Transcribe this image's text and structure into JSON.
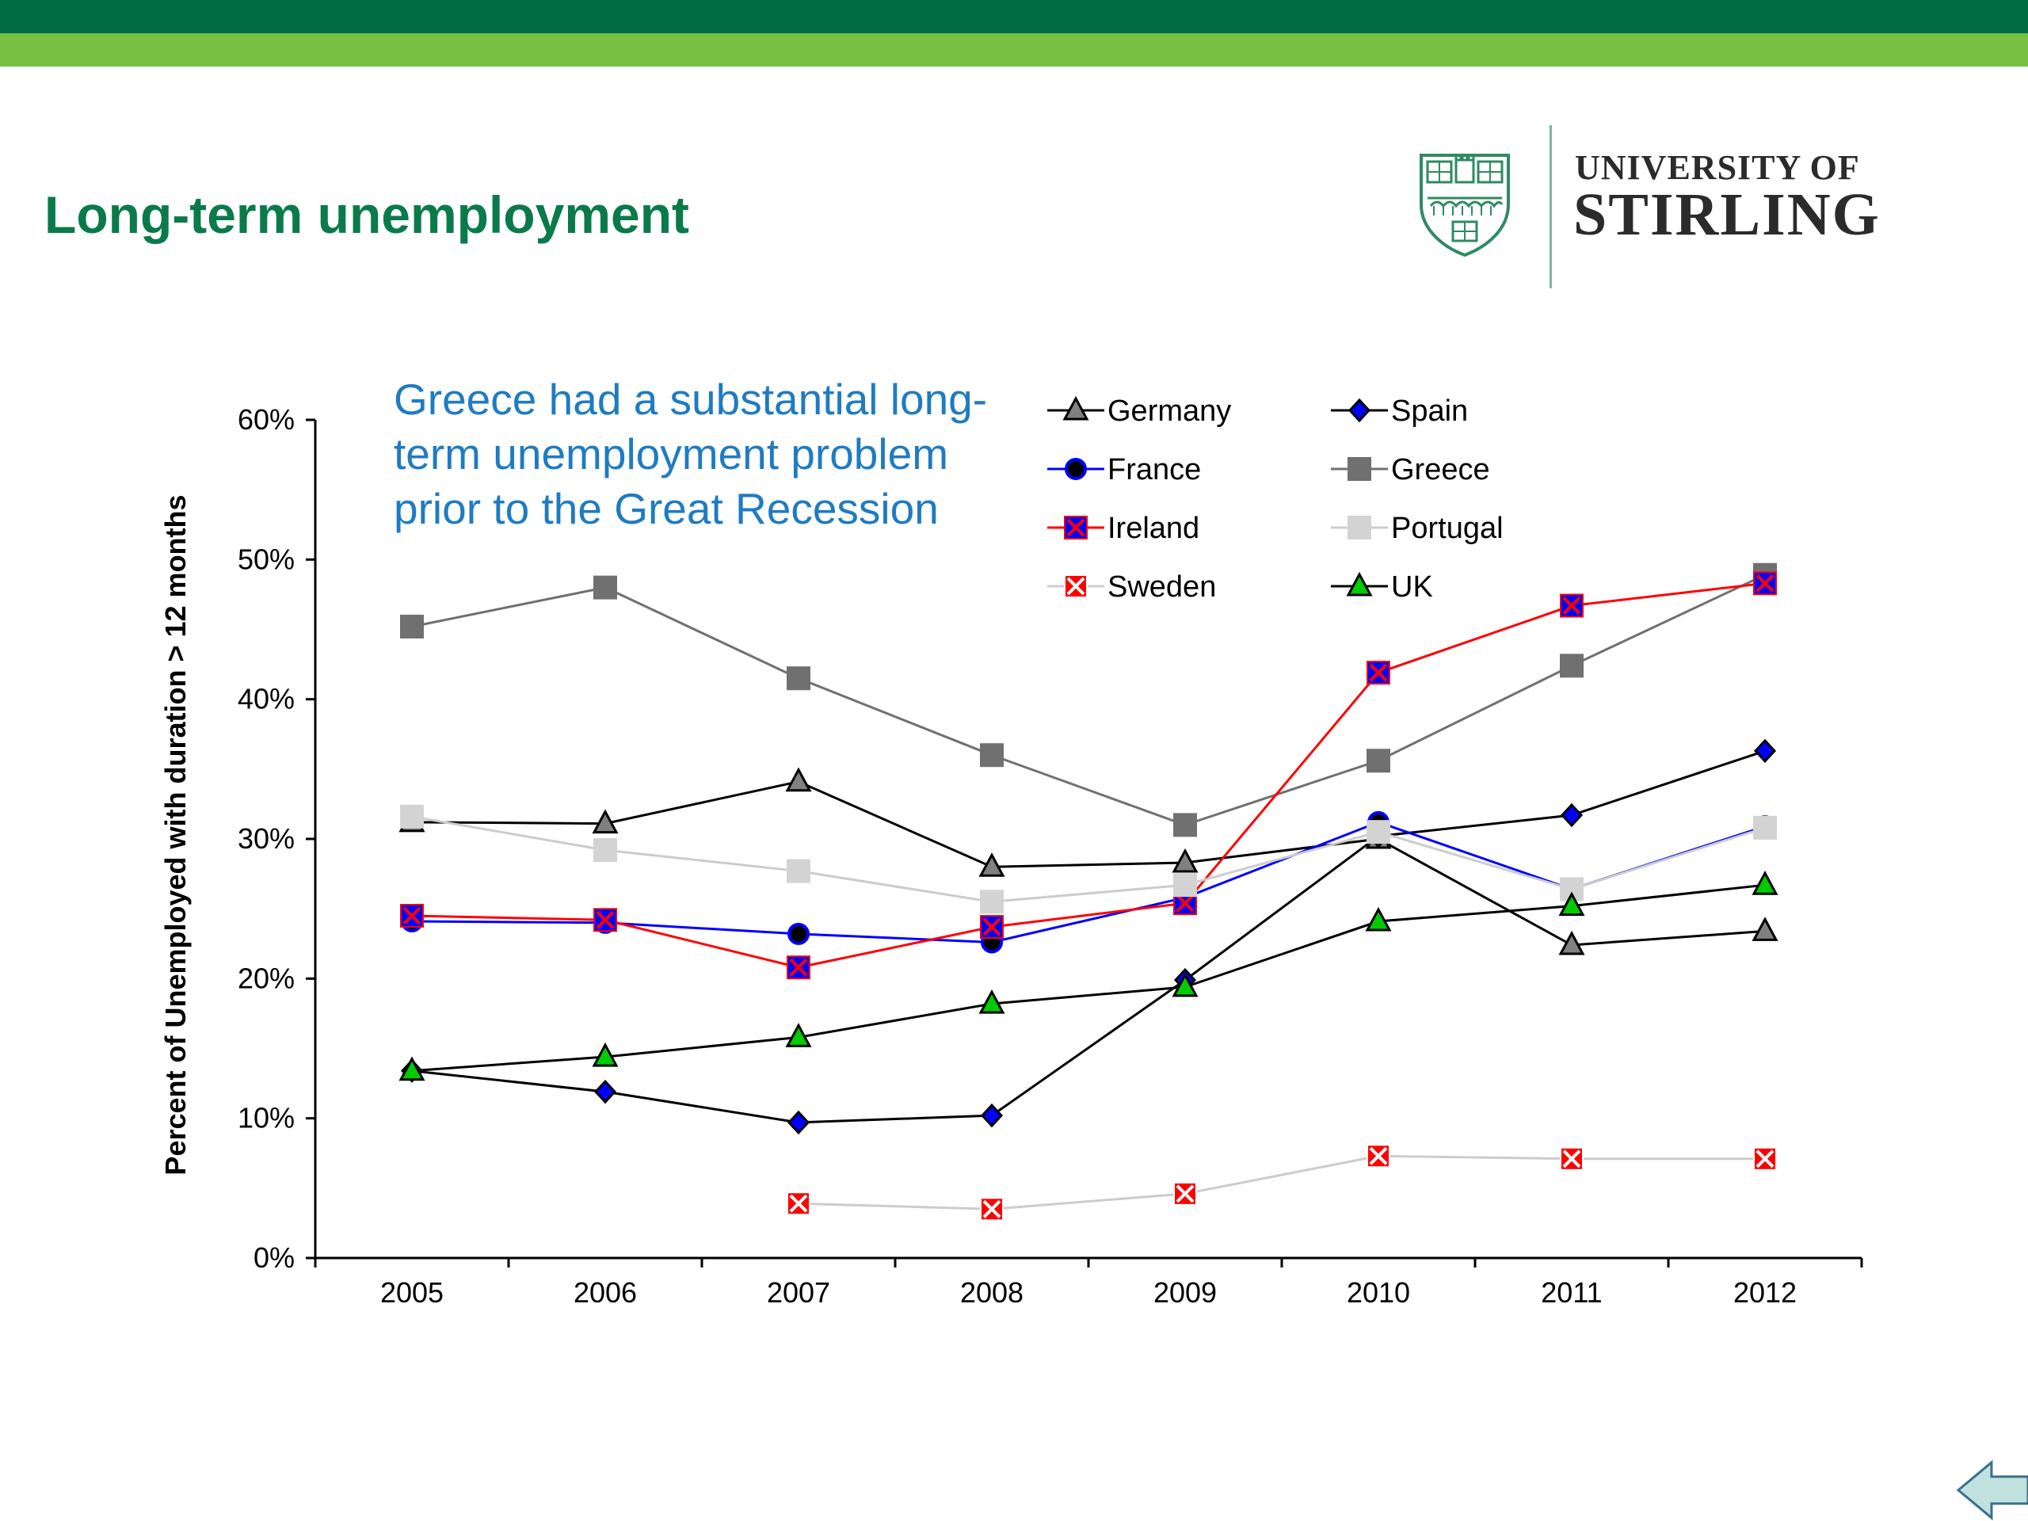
{
  "slide": {
    "title": "Long-term unemployment",
    "colors": {
      "band_dark": "#006b44",
      "band_light": "#77c044",
      "title": "#0a7a4a",
      "annotation": "#1f7bc2"
    }
  },
  "logo": {
    "line1": "UNIVERSITY OF",
    "line2": "STIRLING",
    "crest_icon": "stirling-crest-icon"
  },
  "annotation": "Greece had a substantial long-term unemployment problem prior to the Great Recession",
  "nav": {
    "back_icon": "back-arrow-icon"
  },
  "chart_data": {
    "type": "line",
    "title": "",
    "xlabel": "",
    "ylabel": "Percent of Unemployed with duration > 12 months",
    "x": [
      "2005",
      "2006",
      "2007",
      "2008",
      "2009",
      "2010",
      "2011",
      "2012"
    ],
    "ylim": [
      0,
      60
    ],
    "yticks": [
      0,
      10,
      20,
      30,
      40,
      50,
      60
    ],
    "ytick_labels": [
      "0%",
      "10%",
      "20%",
      "30%",
      "40%",
      "50%",
      "60%"
    ],
    "grid": false,
    "legend_position": "top-right",
    "series": [
      {
        "name": "Germany",
        "color": "#000000",
        "marker": "triangle",
        "marker_fill": "#808080",
        "marker_stroke": "#000000",
        "values": [
          31.2,
          31.1,
          34.1,
          28.0,
          28.3,
          30.0,
          22.4,
          23.4
        ]
      },
      {
        "name": "Spain",
        "color": "#000000",
        "marker": "diamond",
        "marker_fill": "#0000ff",
        "marker_stroke": "#000000",
        "values": [
          13.4,
          11.9,
          9.7,
          10.2,
          19.9,
          30.2,
          31.7,
          36.3
        ]
      },
      {
        "name": "France",
        "color": "#0000ff",
        "marker": "circle",
        "marker_fill": "#000000",
        "marker_stroke": "#0000ff",
        "values": [
          24.1,
          24.0,
          23.2,
          22.6,
          25.8,
          31.2,
          26.4,
          30.9
        ]
      },
      {
        "name": "Greece",
        "color": "#707070",
        "marker": "square",
        "marker_fill": "#707070",
        "marker_stroke": "#707070",
        "values": [
          45.2,
          48.0,
          41.5,
          36.0,
          31.0,
          35.6,
          42.4,
          48.9
        ]
      },
      {
        "name": "Ireland",
        "color": "#ff0000",
        "marker": "x-square",
        "marker_fill": "#0000ff",
        "marker_stroke": "#ff0000",
        "values": [
          24.5,
          24.2,
          20.8,
          23.7,
          25.4,
          41.9,
          46.7,
          48.3
        ]
      },
      {
        "name": "Portugal",
        "color": "#cccccc",
        "marker": "square",
        "marker_fill": "#d3d3d3",
        "marker_stroke": "#d3d3d3",
        "values": [
          31.6,
          29.2,
          27.7,
          25.5,
          26.7,
          30.5,
          26.4,
          30.8
        ]
      },
      {
        "name": "Sweden",
        "color": "#cccccc",
        "marker": "x-square",
        "marker_fill": "#ff0000",
        "marker_stroke": "#ffffff",
        "values": [
          null,
          null,
          3.9,
          3.5,
          4.6,
          7.3,
          7.1,
          7.1
        ]
      },
      {
        "name": "UK",
        "color": "#000000",
        "marker": "triangle",
        "marker_fill": "#00cc00",
        "marker_stroke": "#000000",
        "values": [
          13.4,
          14.4,
          15.8,
          18.2,
          19.4,
          24.1,
          25.2,
          26.7
        ]
      }
    ]
  }
}
